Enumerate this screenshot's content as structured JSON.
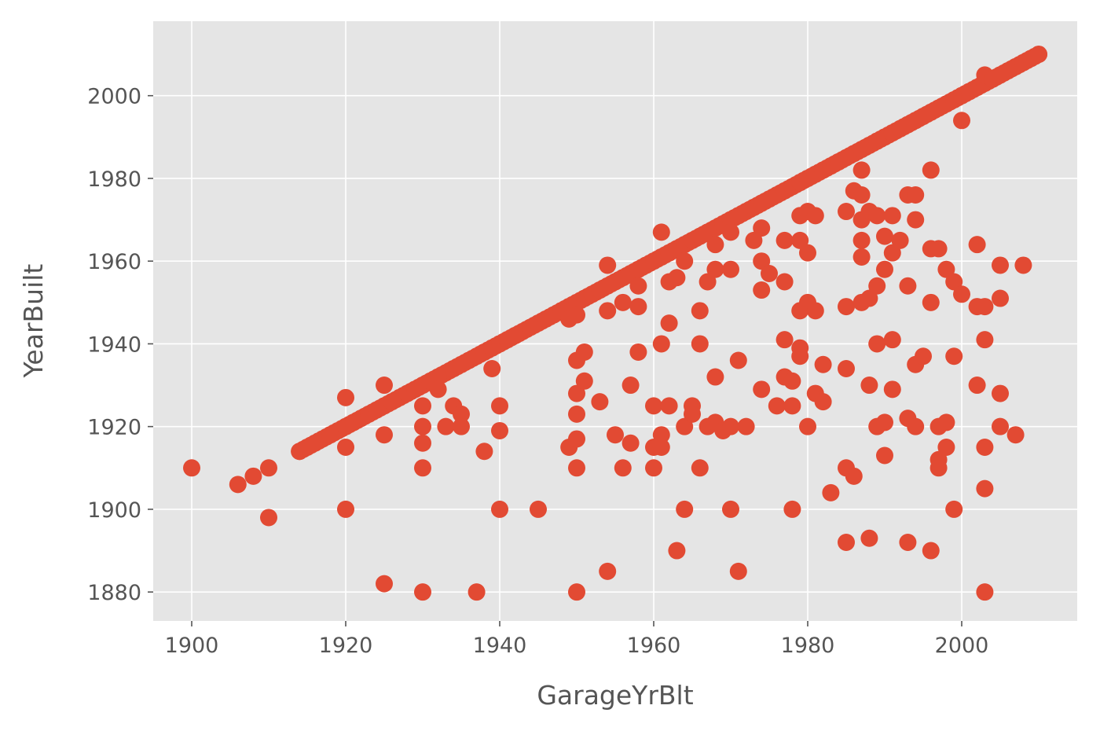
{
  "chart_data": {
    "type": "scatter",
    "title": "",
    "xlabel": "GarageYrBlt",
    "ylabel": "YearBuilt",
    "xlim": [
      1895,
      2015
    ],
    "ylim": [
      1873,
      2018
    ],
    "x_ticks": [
      1900,
      1920,
      1940,
      1960,
      1980,
      2000
    ],
    "y_ticks": [
      1880,
      1900,
      1920,
      1940,
      1960,
      1980,
      2000
    ],
    "grid": true,
    "legend": "none",
    "colors": {
      "point": "#E24A33",
      "plot_bg": "#E5E5E5",
      "grid": "#FFFFFF",
      "text": "#555555"
    },
    "series": [
      {
        "points": [
          [
            1900,
            1910
          ],
          [
            1906,
            1906
          ],
          [
            1908,
            1908
          ],
          [
            1910,
            1910
          ],
          [
            1910,
            1898
          ],
          [
            1914,
            1914
          ],
          [
            1915,
            1915
          ],
          [
            1916,
            1916
          ],
          [
            1918,
            1918
          ],
          [
            1920,
            1920
          ],
          [
            1920,
            1927
          ],
          [
            1920,
            1915
          ],
          [
            1920,
            1900
          ],
          [
            1921,
            1921
          ],
          [
            1922,
            1922
          ],
          [
            1923,
            1923
          ],
          [
            1924,
            1924
          ],
          [
            1925,
            1925
          ],
          [
            1925,
            1930
          ],
          [
            1925,
            1918
          ],
          [
            1925,
            1882
          ],
          [
            1926,
            1926
          ],
          [
            1927,
            1927
          ],
          [
            1928,
            1928
          ],
          [
            1929,
            1929
          ],
          [
            1930,
            1930
          ],
          [
            1930,
            1925
          ],
          [
            1930,
            1920
          ],
          [
            1930,
            1916
          ],
          [
            1930,
            1910
          ],
          [
            1930,
            1880
          ],
          [
            1931,
            1931
          ],
          [
            1932,
            1932
          ],
          [
            1932,
            1929
          ],
          [
            1933,
            1920
          ],
          [
            1934,
            1925
          ],
          [
            1934,
            1934
          ],
          [
            1935,
            1935
          ],
          [
            1935,
            1923
          ],
          [
            1935,
            1920
          ],
          [
            1936,
            1936
          ],
          [
            1937,
            1937
          ],
          [
            1937,
            1880
          ],
          [
            1938,
            1938
          ],
          [
            1938,
            1914
          ],
          [
            1939,
            1939
          ],
          [
            1939,
            1934
          ],
          [
            1940,
            1940
          ],
          [
            1940,
            1925
          ],
          [
            1940,
            1919
          ],
          [
            1940,
            1900
          ],
          [
            1941,
            1941
          ],
          [
            1942,
            1942
          ],
          [
            1945,
            1945
          ],
          [
            1945,
            1900
          ],
          [
            1946,
            1946
          ],
          [
            1947,
            1947
          ],
          [
            1948,
            1948
          ],
          [
            1949,
            1949
          ],
          [
            1949,
            1946
          ],
          [
            1949,
            1915
          ],
          [
            1950,
            1950
          ],
          [
            1950,
            1947
          ],
          [
            1950,
            1936
          ],
          [
            1950,
            1928
          ],
          [
            1950,
            1923
          ],
          [
            1950,
            1917
          ],
          [
            1950,
            1910
          ],
          [
            1950,
            1880
          ],
          [
            1951,
            1951
          ],
          [
            1951,
            1938
          ],
          [
            1951,
            1931
          ],
          [
            1952,
            1952
          ],
          [
            1953,
            1953
          ],
          [
            1953,
            1926
          ],
          [
            1954,
            1954
          ],
          [
            1954,
            1959
          ],
          [
            1954,
            1948
          ],
          [
            1954,
            1885
          ],
          [
            1955,
            1955
          ],
          [
            1955,
            1918
          ],
          [
            1956,
            1956
          ],
          [
            1956,
            1950
          ],
          [
            1956,
            1910
          ],
          [
            1957,
            1957
          ],
          [
            1957,
            1930
          ],
          [
            1957,
            1916
          ],
          [
            1958,
            1958
          ],
          [
            1958,
            1954
          ],
          [
            1958,
            1949
          ],
          [
            1958,
            1938
          ],
          [
            1959,
            1959
          ],
          [
            1960,
            1960
          ],
          [
            1960,
            1925
          ],
          [
            1960,
            1915
          ],
          [
            1960,
            1910
          ],
          [
            1961,
            1961
          ],
          [
            1961,
            1967
          ],
          [
            1961,
            1940
          ],
          [
            1961,
            1918
          ],
          [
            1961,
            1915
          ],
          [
            1962,
            1962
          ],
          [
            1962,
            1955
          ],
          [
            1962,
            1945
          ],
          [
            1962,
            1925
          ],
          [
            1963,
            1963
          ],
          [
            1963,
            1956
          ],
          [
            1963,
            1890
          ],
          [
            1964,
            1964
          ],
          [
            1964,
            1960
          ],
          [
            1964,
            1920
          ],
          [
            1964,
            1900
          ],
          [
            1965,
            1965
          ],
          [
            1965,
            1925
          ],
          [
            1965,
            1923
          ],
          [
            1966,
            1966
          ],
          [
            1966,
            1948
          ],
          [
            1966,
            1940
          ],
          [
            1966,
            1910
          ],
          [
            1967,
            1967
          ],
          [
            1967,
            1955
          ],
          [
            1967,
            1920
          ],
          [
            1968,
            1968
          ],
          [
            1968,
            1964
          ],
          [
            1968,
            1958
          ],
          [
            1968,
            1932
          ],
          [
            1968,
            1921
          ],
          [
            1969,
            1969
          ],
          [
            1969,
            1919
          ],
          [
            1970,
            1970
          ],
          [
            1970,
            1967
          ],
          [
            1970,
            1958
          ],
          [
            1970,
            1920
          ],
          [
            1970,
            1900
          ],
          [
            1971,
            1971
          ],
          [
            1971,
            1936
          ],
          [
            1971,
            1885
          ],
          [
            1972,
            1972
          ],
          [
            1972,
            1920
          ],
          [
            1973,
            1973
          ],
          [
            1973,
            1965
          ],
          [
            1974,
            1974
          ],
          [
            1974,
            1968
          ],
          [
            1974,
            1960
          ],
          [
            1974,
            1953
          ],
          [
            1974,
            1929
          ],
          [
            1975,
            1975
          ],
          [
            1975,
            1957
          ],
          [
            1976,
            1976
          ],
          [
            1976,
            1925
          ],
          [
            1977,
            1977
          ],
          [
            1977,
            1965
          ],
          [
            1977,
            1955
          ],
          [
            1977,
            1941
          ],
          [
            1977,
            1932
          ],
          [
            1978,
            1978
          ],
          [
            1978,
            1931
          ],
          [
            1978,
            1925
          ],
          [
            1978,
            1900
          ],
          [
            1979,
            1979
          ],
          [
            1979,
            1971
          ],
          [
            1979,
            1965
          ],
          [
            1979,
            1948
          ],
          [
            1979,
            1939
          ],
          [
            1979,
            1937
          ],
          [
            1980,
            1980
          ],
          [
            1980,
            1972
          ],
          [
            1980,
            1962
          ],
          [
            1980,
            1950
          ],
          [
            1980,
            1920
          ],
          [
            1981,
            1981
          ],
          [
            1981,
            1971
          ],
          [
            1981,
            1948
          ],
          [
            1981,
            1928
          ],
          [
            1982,
            1982
          ],
          [
            1982,
            1926
          ],
          [
            1982,
            1935
          ],
          [
            1983,
            1983
          ],
          [
            1983,
            1904
          ],
          [
            1984,
            1984
          ],
          [
            1985,
            1985
          ],
          [
            1985,
            1972
          ],
          [
            1985,
            1949
          ],
          [
            1985,
            1934
          ],
          [
            1985,
            1910
          ],
          [
            1985,
            1892
          ],
          [
            1986,
            1986
          ],
          [
            1986,
            1977
          ],
          [
            1986,
            1908
          ],
          [
            1987,
            1987
          ],
          [
            1987,
            1982
          ],
          [
            1987,
            1976
          ],
          [
            1987,
            1970
          ],
          [
            1987,
            1965
          ],
          [
            1987,
            1961
          ],
          [
            1987,
            1950
          ],
          [
            1988,
            1988
          ],
          [
            1988,
            1972
          ],
          [
            1988,
            1951
          ],
          [
            1988,
            1930
          ],
          [
            1988,
            1893
          ],
          [
            1989,
            1989
          ],
          [
            1989,
            1971
          ],
          [
            1989,
            1954
          ],
          [
            1989,
            1940
          ],
          [
            1989,
            1920
          ],
          [
            1990,
            1990
          ],
          [
            1990,
            1966
          ],
          [
            1990,
            1958
          ],
          [
            1990,
            1921
          ],
          [
            1990,
            1913
          ],
          [
            1991,
            1991
          ],
          [
            1991,
            1971
          ],
          [
            1991,
            1962
          ],
          [
            1991,
            1941
          ],
          [
            1991,
            1929
          ],
          [
            1992,
            1992
          ],
          [
            1992,
            1965
          ],
          [
            1993,
            1993
          ],
          [
            1993,
            1976
          ],
          [
            1993,
            1954
          ],
          [
            1993,
            1922
          ],
          [
            1993,
            1892
          ],
          [
            1994,
            1994
          ],
          [
            1994,
            1976
          ],
          [
            1994,
            1970
          ],
          [
            1994,
            1935
          ],
          [
            1994,
            1920
          ],
          [
            1995,
            1995
          ],
          [
            1995,
            1937
          ],
          [
            1996,
            1996
          ],
          [
            1996,
            1982
          ],
          [
            1996,
            1963
          ],
          [
            1996,
            1950
          ],
          [
            1996,
            1890
          ],
          [
            1997,
            1997
          ],
          [
            1997,
            1963
          ],
          [
            1997,
            1920
          ],
          [
            1997,
            1912
          ],
          [
            1997,
            1910
          ],
          [
            1998,
            1998
          ],
          [
            1998,
            1958
          ],
          [
            1998,
            1921
          ],
          [
            1998,
            1915
          ],
          [
            1999,
            1999
          ],
          [
            1999,
            1955
          ],
          [
            1999,
            1937
          ],
          [
            1999,
            1900
          ],
          [
            2000,
            2000
          ],
          [
            2000,
            1994
          ],
          [
            2000,
            1952
          ],
          [
            2001,
            2001
          ],
          [
            2002,
            2002
          ],
          [
            2002,
            1964
          ],
          [
            2002,
            1949
          ],
          [
            2002,
            1930
          ],
          [
            2003,
            2003
          ],
          [
            2003,
            2005
          ],
          [
            2003,
            1949
          ],
          [
            2003,
            1941
          ],
          [
            2003,
            1915
          ],
          [
            2003,
            1905
          ],
          [
            2003,
            1880
          ],
          [
            2004,
            2004
          ],
          [
            2005,
            2005
          ],
          [
            2005,
            1959
          ],
          [
            2005,
            1951
          ],
          [
            2005,
            1928
          ],
          [
            2005,
            1920
          ],
          [
            2006,
            2006
          ],
          [
            2007,
            2007
          ],
          [
            2007,
            1918
          ],
          [
            2008,
            2008
          ],
          [
            2008,
            1959
          ],
          [
            2009,
            2009
          ],
          [
            2010,
            2010
          ]
        ]
      }
    ]
  }
}
